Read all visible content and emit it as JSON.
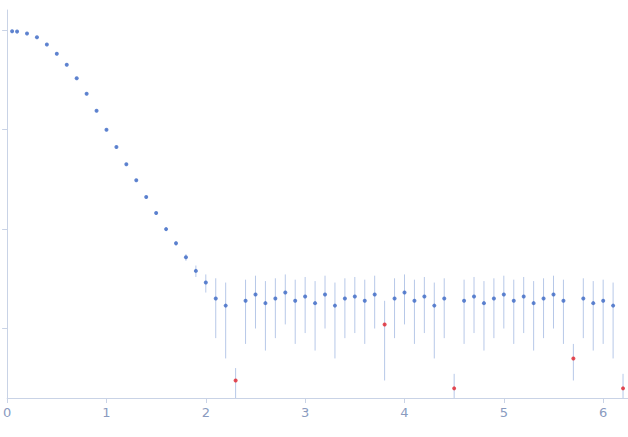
{
  "chart_data": {
    "type": "scatter",
    "x": [
      0.05,
      0.1,
      0.2,
      0.3,
      0.4,
      0.5,
      0.6,
      0.7,
      0.8,
      0.9,
      1.0,
      1.1,
      1.2,
      1.3,
      1.4,
      1.5,
      1.6,
      1.7,
      1.8,
      1.9,
      2.0,
      2.1,
      2.2,
      2.3,
      2.4,
      2.5,
      2.6,
      2.7,
      2.8,
      2.9,
      3.0,
      3.1,
      3.2,
      3.3,
      3.4,
      3.5,
      3.6,
      3.7,
      3.8,
      3.9,
      4.0,
      4.1,
      4.2,
      4.3,
      4.4,
      4.5,
      4.6,
      4.7,
      4.8,
      4.9,
      5.0,
      5.1,
      5.2,
      5.3,
      5.4,
      5.5,
      5.6,
      5.7,
      5.8,
      5.9,
      6.0,
      6.1,
      6.2
    ],
    "values": [
      0.98,
      0.97,
      0.93,
      0.85,
      0.72,
      0.58,
      0.45,
      0.33,
      0.23,
      0.155,
      0.1,
      0.067,
      0.045,
      0.031,
      0.021,
      0.0145,
      0.01,
      0.0072,
      0.0052,
      0.0038,
      0.0029,
      0.002,
      0.0017,
      0.0003,
      0.0019,
      0.0022,
      0.0018,
      0.002,
      0.0023,
      0.0019,
      0.0021,
      0.0018,
      0.0022,
      0.0017,
      0.002,
      0.0021,
      0.0019,
      0.0022,
      0.0011,
      0.002,
      0.0023,
      0.0019,
      0.0021,
      0.0017,
      0.002,
      0.00025,
      0.0019,
      0.0021,
      0.0018,
      0.002,
      0.0022,
      0.0019,
      0.0021,
      0.0018,
      0.002,
      0.0022,
      0.0019,
      0.0005,
      0.002,
      0.0018,
      0.0019,
      0.0017,
      0.00025
    ],
    "errors": [
      0.01,
      0.01,
      0.009,
      0.008,
      0.007,
      0.006,
      0.005,
      0.004,
      0.003,
      0.002,
      0.0015,
      0.001,
      0.0008,
      0.0006,
      0.0005,
      0.0004,
      0.0004,
      0.0004,
      0.0004,
      0.0005,
      0.0006,
      0.0012,
      0.0012,
      0.0001,
      0.0012,
      0.0012,
      0.0012,
      0.0012,
      0.0012,
      0.0012,
      0.0012,
      0.0012,
      0.0012,
      0.0012,
      0.0012,
      0.0012,
      0.0012,
      0.0012,
      0.0008,
      0.0012,
      0.0012,
      0.0012,
      0.0012,
      0.0012,
      0.0012,
      0.0001,
      0.0012,
      0.0012,
      0.0012,
      0.0012,
      0.0012,
      0.0012,
      0.0012,
      0.0012,
      0.0012,
      0.0012,
      0.0012,
      0.0002,
      0.0012,
      0.0012,
      0.0012,
      0.0012,
      0.0001
    ],
    "colors": [
      "#3a66c4",
      "#3a66c4",
      "#3a66c4",
      "#3a66c4",
      "#3a66c4",
      "#3a66c4",
      "#3a66c4",
      "#3a66c4",
      "#3a66c4",
      "#3a66c4",
      "#3a66c4",
      "#3a66c4",
      "#3a66c4",
      "#3a66c4",
      "#3a66c4",
      "#3a66c4",
      "#3a66c4",
      "#3a66c4",
      "#3a66c4",
      "#3a66c4",
      "#3a66c4",
      "#3a66c4",
      "#3a66c4",
      "#e0202a",
      "#3a66c4",
      "#3a66c4",
      "#3a66c4",
      "#3a66c4",
      "#3a66c4",
      "#3a66c4",
      "#3a66c4",
      "#3a66c4",
      "#3a66c4",
      "#3a66c4",
      "#3a66c4",
      "#3a66c4",
      "#3a66c4",
      "#3a66c4",
      "#e0202a",
      "#3a66c4",
      "#3a66c4",
      "#3a66c4",
      "#3a66c4",
      "#3a66c4",
      "#3a66c4",
      "#e0202a",
      "#3a66c4",
      "#3a66c4",
      "#3a66c4",
      "#3a66c4",
      "#3a66c4",
      "#3a66c4",
      "#3a66c4",
      "#3a66c4",
      "#3a66c4",
      "#3a66c4",
      "#3a66c4",
      "#e0202a",
      "#3a66c4",
      "#3a66c4",
      "#3a66c4",
      "#3a66c4",
      "#e0202a"
    ],
    "error_color": "#b7c8e8",
    "xlim": [
      0,
      6.25
    ],
    "xticks": [
      0,
      1,
      2,
      3,
      4,
      5,
      6
    ],
    "ylim": [
      0.0002,
      1.6
    ],
    "yticks": [
      0.001,
      0.01,
      0.1,
      1
    ],
    "log": "y",
    "grid": false,
    "tick_labels": "x"
  }
}
